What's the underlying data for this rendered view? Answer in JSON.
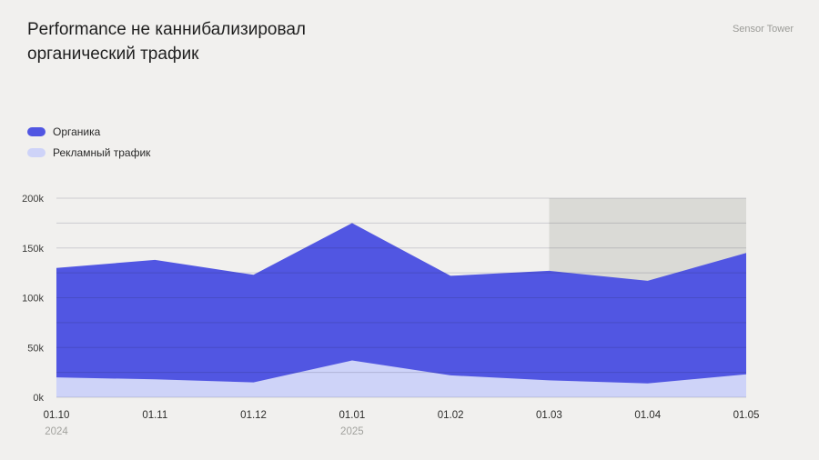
{
  "header": {
    "title": "Performance не каннибализировал\nорганический трафик",
    "brand": "Sensor Tower"
  },
  "legend": [
    {
      "label": "Органика",
      "color": "#5156e2"
    },
    {
      "label": "Рекламный трафик",
      "color": "#ced3f8"
    }
  ],
  "chart_data": {
    "type": "area",
    "title": "Performance не каннибализировал органический трафик",
    "x": [
      "01.10",
      "01.11",
      "01.12",
      "01.01",
      "01.02",
      "01.03",
      "01.04",
      "01.05"
    ],
    "x_year_labels": {
      "01.10": "2024",
      "01.01": "2025"
    },
    "series": [
      {
        "name": "Органика",
        "color": "#5156e2",
        "values": [
          130000,
          138000,
          123000,
          175000,
          122000,
          127000,
          117000,
          145000
        ]
      },
      {
        "name": "Рекламный трафик",
        "color": "#ced3f8",
        "values": [
          20000,
          18000,
          15000,
          37000,
          22000,
          17000,
          14000,
          23000
        ]
      }
    ],
    "ylim": [
      0,
      200000
    ],
    "yticks": [
      "0k",
      "50k",
      "100k",
      "150k",
      "200k"
    ],
    "grid_interval": 25000,
    "grid": true,
    "legend_position": "top-left",
    "highlight_region": {
      "from": "01.03",
      "to": "01.05",
      "color": "#dadad6"
    },
    "xlabel": "",
    "ylabel": ""
  }
}
